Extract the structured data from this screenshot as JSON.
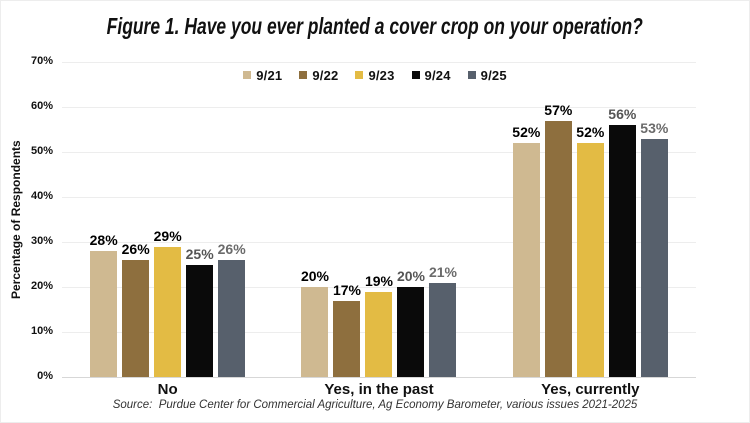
{
  "title": "Figure 1. Have you ever planted a cover crop on your operation?",
  "source": "Source:  Purdue Center for Commercial Agriculture, Ag Economy Barometer, various issues 2021-2025",
  "chart_data": {
    "type": "bar",
    "title": "Figure 1. Have you ever planted a cover crop on your operation?",
    "xlabel": "",
    "ylabel": "Percentage of Respondents",
    "ylim": [
      0,
      70
    ],
    "yticks": [
      0,
      10,
      20,
      30,
      40,
      50,
      60,
      70
    ],
    "ytick_suffix": "%",
    "value_suffix": "%",
    "grid": true,
    "legend_position": "top-center",
    "categories": [
      "No",
      "Yes, in the past",
      "Yes, currently"
    ],
    "series": [
      {
        "name": "9/21",
        "color": "#CFB991",
        "label_color": "#000000",
        "values": [
          28,
          20,
          52
        ]
      },
      {
        "name": "9/22",
        "color": "#8E6F3E",
        "label_color": "#000000",
        "values": [
          26,
          17,
          57
        ]
      },
      {
        "name": "9/23",
        "color": "#E3BB44",
        "label_color": "#000000",
        "values": [
          29,
          19,
          52
        ]
      },
      {
        "name": "9/24",
        "color": "#0A0A0A",
        "label_color": "#555555",
        "values": [
          25,
          20,
          56
        ]
      },
      {
        "name": "9/25",
        "color": "#57606C",
        "label_color": "#6B6B6B",
        "values": [
          26,
          21,
          53
        ]
      }
    ],
    "colors": {
      "gridline": "#EDEDED",
      "baseline": "#D7D7D7"
    }
  }
}
